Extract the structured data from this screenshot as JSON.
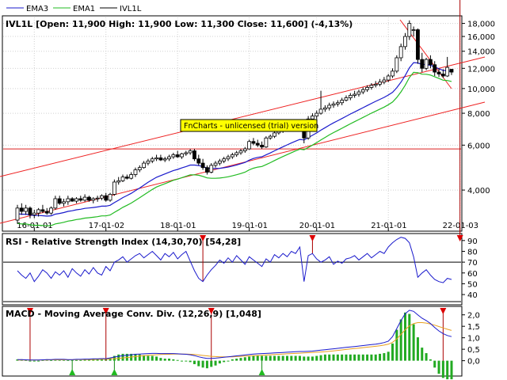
{
  "legend": [
    {
      "name": "EMA3",
      "color": "#1a1acc"
    },
    {
      "name": "EMA1",
      "color": "#22bb22"
    },
    {
      "name": "IVL1L",
      "color": "#000000"
    }
  ],
  "watermark": "FnCharts - unlicensed (trial) version",
  "chart_data": [
    {
      "type": "candlestick",
      "title": "IVL1L [Open: 11,900  High: 11,900  Low: 11,300  Close: 11,600] (-4,13%)",
      "yscale": "log",
      "ylim": [
        2800,
        19000
      ],
      "ytick_labels": [
        "4,000",
        "6,000",
        "8,000",
        "10,000",
        "12,000",
        "14,000",
        "16,000",
        "18,000"
      ],
      "ytick_values": [
        4000,
        6000,
        8000,
        10000,
        12000,
        14000,
        16000,
        18000
      ],
      "xtick_labels": [
        "16-01-01",
        "17-01-02",
        "18-01-01",
        "19-01-01",
        "20-01-01",
        "21-01-01",
        "22-01-03"
      ],
      "xtick_index": [
        4,
        21,
        38,
        55,
        71,
        88,
        105
      ],
      "grid": true,
      "horizontal_line": 5800,
      "candles": [
        [
          3.05,
          3.5,
          2.95,
          3.4
        ],
        [
          3.4,
          3.55,
          3.2,
          3.3
        ],
        [
          3.3,
          3.5,
          3.2,
          3.4
        ],
        [
          3.4,
          3.45,
          3.1,
          3.2
        ],
        [
          3.2,
          3.35,
          3.1,
          3.25
        ],
        [
          3.25,
          3.4,
          3.15,
          3.35
        ],
        [
          3.35,
          3.5,
          3.25,
          3.3
        ],
        [
          3.3,
          3.4,
          3.2,
          3.25
        ],
        [
          3.25,
          3.45,
          3.2,
          3.4
        ],
        [
          3.4,
          3.8,
          3.35,
          3.7
        ],
        [
          3.7,
          3.8,
          3.5,
          3.55
        ],
        [
          3.55,
          3.7,
          3.45,
          3.6
        ],
        [
          3.6,
          3.8,
          3.5,
          3.7
        ],
        [
          3.7,
          3.75,
          3.6,
          3.62
        ],
        [
          3.62,
          3.75,
          3.55,
          3.7
        ],
        [
          3.7,
          3.8,
          3.6,
          3.65
        ],
        [
          3.65,
          3.85,
          3.6,
          3.75
        ],
        [
          3.75,
          3.8,
          3.6,
          3.65
        ],
        [
          3.65,
          3.75,
          3.55,
          3.7
        ],
        [
          3.7,
          3.8,
          3.6,
          3.72
        ],
        [
          3.72,
          3.85,
          3.65,
          3.8
        ],
        [
          3.8,
          3.9,
          3.6,
          3.65
        ],
        [
          3.65,
          3.9,
          3.6,
          3.85
        ],
        [
          3.85,
          4.4,
          3.8,
          4.3
        ],
        [
          4.3,
          4.5,
          4.2,
          4.35
        ],
        [
          4.35,
          4.6,
          4.3,
          4.5
        ],
        [
          4.5,
          4.6,
          4.4,
          4.45
        ],
        [
          4.45,
          4.7,
          4.4,
          4.6
        ],
        [
          4.6,
          4.9,
          4.5,
          4.8
        ],
        [
          4.8,
          5.0,
          4.7,
          4.9
        ],
        [
          4.9,
          5.2,
          4.85,
          5.1
        ],
        [
          5.1,
          5.3,
          5.0,
          5.2
        ],
        [
          5.2,
          5.4,
          5.1,
          5.3
        ],
        [
          5.3,
          5.5,
          5.2,
          5.35
        ],
        [
          5.35,
          5.5,
          5.2,
          5.25
        ],
        [
          5.25,
          5.4,
          5.15,
          5.3
        ],
        [
          5.3,
          5.5,
          5.2,
          5.4
        ],
        [
          5.4,
          5.6,
          5.3,
          5.5
        ],
        [
          5.5,
          5.7,
          5.35,
          5.4
        ],
        [
          5.4,
          5.6,
          5.3,
          5.55
        ],
        [
          5.55,
          5.7,
          5.45,
          5.6
        ],
        [
          5.6,
          5.8,
          5.5,
          5.7
        ],
        [
          5.7,
          5.8,
          5.2,
          5.3
        ],
        [
          5.3,
          5.5,
          5.0,
          5.1
        ],
        [
          5.1,
          5.3,
          4.8,
          4.9
        ],
        [
          4.9,
          5.0,
          4.6,
          4.7
        ],
        [
          4.7,
          5.1,
          4.65,
          5.0
        ],
        [
          5.0,
          5.2,
          4.9,
          5.1
        ],
        [
          5.1,
          5.3,
          5.0,
          5.2
        ],
        [
          5.2,
          5.4,
          5.1,
          5.3
        ],
        [
          5.3,
          5.5,
          5.2,
          5.4
        ],
        [
          5.4,
          5.6,
          5.3,
          5.5
        ],
        [
          5.5,
          5.7,
          5.4,
          5.6
        ],
        [
          5.6,
          5.8,
          5.5,
          5.7
        ],
        [
          5.7,
          5.9,
          5.6,
          5.8
        ],
        [
          5.8,
          6.3,
          5.75,
          6.2
        ],
        [
          6.2,
          6.4,
          6.0,
          6.1
        ],
        [
          6.1,
          6.3,
          5.9,
          6.0
        ],
        [
          6.0,
          6.2,
          5.8,
          5.9
        ],
        [
          5.9,
          6.5,
          5.85,
          6.4
        ],
        [
          6.4,
          6.6,
          6.3,
          6.5
        ],
        [
          6.5,
          6.8,
          6.4,
          6.7
        ],
        [
          6.7,
          6.9,
          6.6,
          6.8
        ],
        [
          6.8,
          7.0,
          6.7,
          6.9
        ],
        [
          6.9,
          7.1,
          6.8,
          7.0
        ],
        [
          7.0,
          7.2,
          6.9,
          7.1
        ],
        [
          7.1,
          7.3,
          7.0,
          7.2
        ],
        [
          7.2,
          7.4,
          7.1,
          7.3
        ],
        [
          7.3,
          7.5,
          6.1,
          6.4
        ],
        [
          6.4,
          7.8,
          6.3,
          7.6
        ],
        [
          7.6,
          8.0,
          7.4,
          7.8
        ],
        [
          7.8,
          8.2,
          7.6,
          8.0
        ],
        [
          8.0,
          9.8,
          7.9,
          8.3
        ],
        [
          8.3,
          8.6,
          8.1,
          8.4
        ],
        [
          8.4,
          8.8,
          8.2,
          8.6
        ],
        [
          8.6,
          8.9,
          8.4,
          8.7
        ],
        [
          8.7,
          9.0,
          8.5,
          8.8
        ],
        [
          8.8,
          9.2,
          8.6,
          9.0
        ],
        [
          9.0,
          9.4,
          8.9,
          9.2
        ],
        [
          9.2,
          9.6,
          9.0,
          9.4
        ],
        [
          9.4,
          9.8,
          9.2,
          9.5
        ],
        [
          9.5,
          9.9,
          9.3,
          9.7
        ],
        [
          9.7,
          10.1,
          9.5,
          9.9
        ],
        [
          9.9,
          10.3,
          9.7,
          10.1
        ],
        [
          10.1,
          10.5,
          9.9,
          10.3
        ],
        [
          10.3,
          10.7,
          10.1,
          10.4
        ],
        [
          10.4,
          10.9,
          10.2,
          10.6
        ],
        [
          10.6,
          11.1,
          10.4,
          10.8
        ],
        [
          10.8,
          11.4,
          10.6,
          11.2
        ],
        [
          11.2,
          12.0,
          11.0,
          11.7
        ],
        [
          11.7,
          13.5,
          11.5,
          13.2
        ],
        [
          13.2,
          15.0,
          12.8,
          14.6
        ],
        [
          14.6,
          16.5,
          14.2,
          16.0
        ],
        [
          16.0,
          18.5,
          15.5,
          18.0
        ],
        [
          17.0,
          17.5,
          16.0,
          17.0
        ],
        [
          17.0,
          17.2,
          12.5,
          13.0
        ],
        [
          13.0,
          13.8,
          11.6,
          12.0
        ],
        [
          12.0,
          13.2,
          11.8,
          13.0
        ],
        [
          13.0,
          13.5,
          12.0,
          12.4
        ],
        [
          12.4,
          12.8,
          11.2,
          11.6
        ],
        [
          11.6,
          12.0,
          11.1,
          11.4
        ],
        [
          11.4,
          11.9,
          11.0,
          11.2
        ],
        [
          11.2,
          13.3,
          11.1,
          12.1
        ],
        [
          11.9,
          11.9,
          11.3,
          11.6
        ]
      ]
    },
    {
      "type": "line",
      "title": "RSI - Relative Strength Index (14,30,70) [54,28]",
      "ylim": [
        32,
        95
      ],
      "ytick_labels": [
        "40",
        "50",
        "60",
        "70",
        "80",
        "90"
      ],
      "ytick_values": [
        40,
        50,
        60,
        70,
        80,
        90
      ],
      "reference_lines": [
        70,
        30
      ],
      "series": [
        {
          "color": "#1a1acc",
          "values": [
            62,
            58,
            55,
            60,
            52,
            57,
            63,
            60,
            55,
            61,
            58,
            62,
            56,
            64,
            60,
            57,
            63,
            59,
            65,
            60,
            58,
            66,
            62,
            70,
            72,
            75,
            70,
            73,
            76,
            78,
            74,
            77,
            80,
            76,
            72,
            78,
            75,
            79,
            73,
            77,
            80,
            71,
            62,
            55,
            52,
            58,
            63,
            67,
            72,
            69,
            74,
            70,
            76,
            72,
            68,
            75,
            72,
            69,
            66,
            73,
            70,
            77,
            74,
            78,
            75,
            80,
            78,
            84,
            52,
            76,
            78,
            73,
            70,
            72,
            75,
            68,
            71,
            69,
            73,
            74,
            76,
            72,
            75,
            78,
            74,
            77,
            80,
            78,
            84,
            88,
            91,
            93,
            92,
            88,
            75,
            56,
            60,
            63,
            58,
            54,
            52,
            51,
            55,
            54
          ]
        }
      ],
      "signal_markers": [
        44,
        70,
        105
      ]
    },
    {
      "type": "line",
      "title": "MACD - Moving Average Conv. Div. (12,26,9) [1,048]",
      "ylim": [
        -0.6,
        2.3
      ],
      "ytick_labels": [
        "0,0",
        "0,5",
        "1,0",
        "1,5",
        "2,0"
      ],
      "ytick_values": [
        0,
        0.5,
        1.0,
        1.5,
        2.0
      ],
      "series": [
        {
          "color": "#1a1acc",
          "values": [
            0.05,
            0.05,
            0.04,
            0.03,
            0.03,
            0.03,
            0.04,
            0.05,
            0.05,
            0.06,
            0.06,
            0.06,
            0.05,
            0.05,
            0.06,
            0.06,
            0.07,
            0.07,
            0.08,
            0.08,
            0.09,
            0.09,
            0.12,
            0.16,
            0.19,
            0.22,
            0.24,
            0.26,
            0.28,
            0.29,
            0.3,
            0.31,
            0.32,
            0.32,
            0.31,
            0.31,
            0.31,
            0.31,
            0.3,
            0.29,
            0.28,
            0.26,
            0.22,
            0.17,
            0.13,
            0.1,
            0.1,
            0.11,
            0.13,
            0.15,
            0.17,
            0.19,
            0.21,
            0.23,
            0.25,
            0.27,
            0.29,
            0.3,
            0.31,
            0.32,
            0.33,
            0.34,
            0.35,
            0.36,
            0.37,
            0.38,
            0.39,
            0.4,
            0.4,
            0.41,
            0.42,
            0.44,
            0.46,
            0.48,
            0.5,
            0.52,
            0.54,
            0.56,
            0.58,
            0.6,
            0.62,
            0.64,
            0.66,
            0.68,
            0.7,
            0.72,
            0.75,
            0.79,
            0.85,
            1.05,
            1.4,
            1.75,
            2.05,
            2.2,
            2.15,
            2.0,
            1.85,
            1.75,
            1.62,
            1.45,
            1.3,
            1.18,
            1.1,
            1.05
          ]
        },
        {
          "color": "#e8a020",
          "values": [
            0.03,
            0.03,
            0.03,
            0.03,
            0.03,
            0.03,
            0.03,
            0.03,
            0.04,
            0.04,
            0.04,
            0.04,
            0.04,
            0.04,
            0.05,
            0.05,
            0.05,
            0.05,
            0.05,
            0.06,
            0.06,
            0.07,
            0.08,
            0.09,
            0.1,
            0.12,
            0.14,
            0.16,
            0.18,
            0.2,
            0.22,
            0.24,
            0.25,
            0.26,
            0.27,
            0.28,
            0.28,
            0.29,
            0.29,
            0.29,
            0.29,
            0.28,
            0.27,
            0.25,
            0.23,
            0.21,
            0.19,
            0.18,
            0.17,
            0.17,
            0.17,
            0.17,
            0.18,
            0.19,
            0.2,
            0.21,
            0.22,
            0.23,
            0.24,
            0.25,
            0.26,
            0.27,
            0.28,
            0.29,
            0.3,
            0.31,
            0.32,
            0.33,
            0.34,
            0.35,
            0.36,
            0.37,
            0.38,
            0.39,
            0.41,
            0.43,
            0.45,
            0.47,
            0.49,
            0.51,
            0.53,
            0.55,
            0.57,
            0.59,
            0.61,
            0.63,
            0.65,
            0.68,
            0.72,
            0.8,
            0.95,
            1.15,
            1.35,
            1.52,
            1.62,
            1.66,
            1.66,
            1.64,
            1.6,
            1.55,
            1.49,
            1.43,
            1.37,
            1.32
          ]
        }
      ],
      "histogram_color": "#22aa22",
      "signal_markers_down": [
        3,
        21,
        46,
        101
      ],
      "signal_markers_up": [
        13,
        23,
        58
      ]
    }
  ]
}
